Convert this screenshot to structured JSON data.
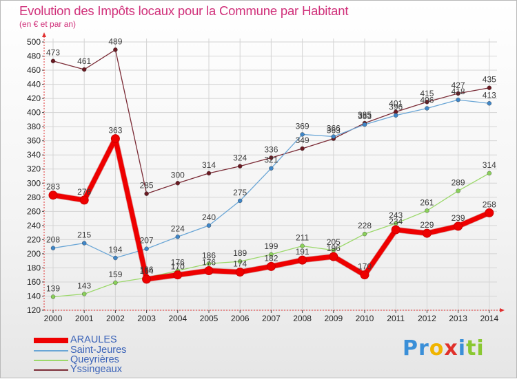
{
  "title": "Evolution des Impôts locaux pour la Commune par Habitant",
  "subtitle": "(en € et par an)",
  "logo": {
    "parts": [
      "Pr",
      "o",
      "x",
      "i",
      "ti"
    ],
    "colors": [
      "#3a8fd8",
      "#f0b400",
      "#e0302a",
      "#3a8fd8",
      "#8ac832"
    ]
  },
  "chart_data": {
    "type": "line",
    "title": "Evolution des Impôts locaux pour la Commune par Habitant",
    "ylabel": "(en € et par an)",
    "xlabel": "",
    "ylim": [
      120,
      500
    ],
    "yticks": [
      120,
      140,
      160,
      180,
      200,
      220,
      240,
      260,
      280,
      300,
      320,
      340,
      360,
      380,
      400,
      420,
      440,
      460,
      480,
      500
    ],
    "categories": [
      "2000",
      "2001",
      "2002",
      "2003",
      "2004",
      "2005",
      "2006",
      "2007",
      "2008",
      "2009",
      "2010",
      "2011",
      "2012",
      "2013",
      "2014"
    ],
    "legend_position": "bottom-left",
    "series": [
      {
        "name": "Yssingeaux",
        "color": "#7a2a35",
        "marker": "#6a1a22",
        "width": 1.3,
        "values": [
          473,
          461,
          489,
          285,
          300,
          314,
          324,
          336,
          349,
          363,
          385,
          401,
          415,
          427,
          435
        ]
      },
      {
        "name": "Saint-Jeures",
        "color": "#6aa6d6",
        "marker": "#3f86c8",
        "width": 1.3,
        "values": [
          208,
          215,
          194,
          207,
          224,
          240,
          275,
          321,
          369,
          366,
          383,
          396,
          406,
          418,
          413
        ]
      },
      {
        "name": "Queyrières",
        "color": "#9bd86a",
        "marker": "#8ad05a",
        "width": 1.3,
        "values": [
          139,
          143,
          159,
          166,
          176,
          186,
          189,
          199,
          211,
          205,
          228,
          243,
          261,
          289,
          314
        ]
      },
      {
        "name": "ARAULES",
        "color": "#ee0000",
        "marker": "#ee0000",
        "width": 7,
        "values": [
          283,
          276,
          363,
          164,
          170,
          176,
          174,
          182,
          191,
          196,
          170,
          234,
          229,
          239,
          258
        ]
      }
    ],
    "legend": [
      {
        "name": "ARAULES",
        "color": "#ee0000"
      },
      {
        "name": "Saint-Jeures",
        "color": "#6aa6d6"
      },
      {
        "name": "Queyrières",
        "color": "#9bd86a"
      },
      {
        "name": "Yssingeaux",
        "color": "#7a2a35"
      }
    ]
  }
}
